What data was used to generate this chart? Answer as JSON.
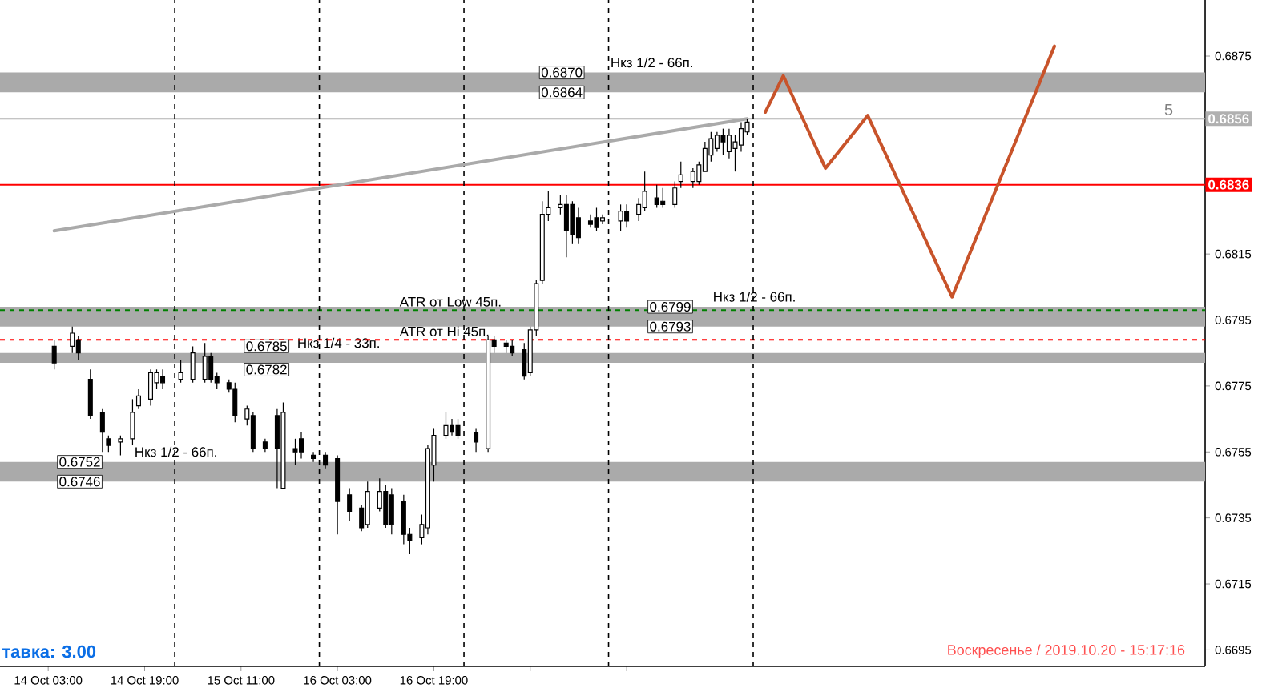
{
  "chart_data": {
    "type": "candlestick",
    "x": [
      "2019-10-14T04:00",
      "2019-10-14T07:00",
      "2019-10-14T08:00",
      "2019-10-14T10:00",
      "2019-10-14T12:00",
      "2019-10-14T13:00",
      "2019-10-14T15:00",
      "2019-10-14T17:00",
      "2019-10-14T18:00",
      "2019-10-14T20:00",
      "2019-10-14T21:00",
      "2019-10-14T22:00",
      "2019-10-15T01:00",
      "2019-10-15T03:00",
      "2019-10-15T05:00",
      "2019-10-15T06:00",
      "2019-10-15T07:00",
      "2019-10-15T09:00",
      "2019-10-15T10:00",
      "2019-10-15T12:00",
      "2019-10-15T13:00",
      "2019-10-15T15:00",
      "2019-10-15T17:00",
      "2019-10-15T18:00",
      "2019-10-15T20:00",
      "2019-10-15T21:00",
      "2019-10-15T23:00",
      "2019-10-16T01:00",
      "2019-10-16T03:00",
      "2019-10-16T05:00",
      "2019-10-16T07:00",
      "2019-10-16T08:00",
      "2019-10-16T10:00",
      "2019-10-16T11:00",
      "2019-10-16T12:00",
      "2019-10-16T14:00",
      "2019-10-16T15:00",
      "2019-10-16T17:00",
      "2019-10-16T18:00",
      "2019-10-16T19:00",
      "2019-10-16T21:00",
      "2019-10-16T22:00",
      "2019-10-16T23:00",
      "2019-10-17T02:00",
      "2019-10-17T04:00",
      "2019-10-17T05:00",
      "2019-10-17T07:00",
      "2019-10-17T08:00",
      "2019-10-17T10:00",
      "2019-10-17T11:00",
      "2019-10-17T12:00",
      "2019-10-17T13:00",
      "2019-10-17T14:00",
      "2019-10-17T16:00",
      "2019-10-17T17:00",
      "2019-10-17T18:00",
      "2019-10-17T19:00",
      "2019-10-17T21:00",
      "2019-10-17T22:00",
      "2019-10-17T23:00",
      "2019-10-18T02:00",
      "2019-10-18T03:00",
      "2019-10-18T05:00",
      "2019-10-18T06:00",
      "2019-10-18T08:00",
      "2019-10-18T09:00",
      "2019-10-18T11:00",
      "2019-10-18T12:00",
      "2019-10-18T14:00",
      "2019-10-18T15:00",
      "2019-10-18T16:00",
      "2019-10-18T17:00",
      "2019-10-18T18:00",
      "2019-10-18T19:00",
      "2019-10-18T20:00",
      "2019-10-18T21:00",
      "2019-10-18T22:00",
      "2019-10-18T23:00"
    ],
    "ohlc": [
      [
        0.6787,
        0.6789,
        0.678,
        0.6782
      ],
      [
        0.6787,
        0.6793,
        0.6785,
        0.6791
      ],
      [
        0.6789,
        0.679,
        0.6783,
        0.6785
      ],
      [
        0.6777,
        0.678,
        0.6765,
        0.6766
      ],
      [
        0.6767,
        0.6768,
        0.6755,
        0.6761
      ],
      [
        0.6759,
        0.676,
        0.6755,
        0.6757
      ],
      [
        0.6758,
        0.676,
        0.6754,
        0.6759
      ],
      [
        0.6759,
        0.6771,
        0.6757,
        0.6767
      ],
      [
        0.6769,
        0.6774,
        0.6768,
        0.6772
      ],
      [
        0.6771,
        0.678,
        0.6769,
        0.6779
      ],
      [
        0.6776,
        0.678,
        0.6774,
        0.6779
      ],
      [
        0.6778,
        0.678,
        0.6774,
        0.6776
      ],
      [
        0.6777,
        0.6783,
        0.6776,
        0.6779
      ],
      [
        0.6777,
        0.6787,
        0.6776,
        0.6785
      ],
      [
        0.6777,
        0.6788,
        0.6776,
        0.6784
      ],
      [
        0.6784,
        0.6785,
        0.6776,
        0.6777
      ],
      [
        0.6778,
        0.6779,
        0.6774,
        0.6776
      ],
      [
        0.6776,
        0.6777,
        0.6773,
        0.6774
      ],
      [
        0.6774,
        0.6776,
        0.6764,
        0.6766
      ],
      [
        0.6765,
        0.6769,
        0.6763,
        0.6768
      ],
      [
        0.6766,
        0.6767,
        0.6755,
        0.6756
      ],
      [
        0.6758,
        0.6759,
        0.6755,
        0.6756
      ],
      [
        0.6766,
        0.6768,
        0.6744,
        0.6756
      ],
      [
        0.6744,
        0.677,
        0.6744,
        0.6767
      ],
      [
        0.6756,
        0.6759,
        0.6751,
        0.6755
      ],
      [
        0.6759,
        0.6761,
        0.6753,
        0.6755
      ],
      [
        0.6754,
        0.6755,
        0.6752,
        0.6753
      ],
      [
        0.6754,
        0.6755,
        0.675,
        0.6751
      ],
      [
        0.6753,
        0.6754,
        0.673,
        0.674
      ],
      [
        0.6742,
        0.6744,
        0.6734,
        0.6737
      ],
      [
        0.6738,
        0.6739,
        0.6731,
        0.6732
      ],
      [
        0.6733,
        0.6746,
        0.6732,
        0.6743
      ],
      [
        0.6738,
        0.6747,
        0.6737,
        0.6743
      ],
      [
        0.6743,
        0.6745,
        0.6732,
        0.6733
      ],
      [
        0.6742,
        0.6744,
        0.673,
        0.6733
      ],
      [
        0.674,
        0.6742,
        0.6727,
        0.673
      ],
      [
        0.673,
        0.6732,
        0.6724,
        0.6728
      ],
      [
        0.6729,
        0.6736,
        0.6727,
        0.6733
      ],
      [
        0.6732,
        0.6757,
        0.673,
        0.6756
      ],
      [
        0.6751,
        0.6762,
        0.6746,
        0.676
      ],
      [
        0.676,
        0.6767,
        0.6759,
        0.6763
      ],
      [
        0.6763,
        0.6765,
        0.676,
        0.6761
      ],
      [
        0.6763,
        0.6765,
        0.6759,
        0.676
      ],
      [
        0.6761,
        0.6762,
        0.6755,
        0.6758
      ],
      [
        0.6756,
        0.679,
        0.6755,
        0.6789
      ],
      [
        0.6789,
        0.679,
        0.6785,
        0.6787
      ],
      [
        0.6788,
        0.6789,
        0.6785,
        0.6787
      ],
      [
        0.6787,
        0.6789,
        0.6784,
        0.6785
      ],
      [
        0.6786,
        0.6788,
        0.6777,
        0.6778
      ],
      [
        0.6779,
        0.6793,
        0.6778,
        0.6792
      ],
      [
        0.6792,
        0.6807,
        0.679,
        0.6806
      ],
      [
        0.6807,
        0.6831,
        0.6806,
        0.6827
      ],
      [
        0.6827,
        0.6834,
        0.6825,
        0.6829
      ],
      [
        0.6829,
        0.6833,
        0.6827,
        0.683
      ],
      [
        0.683,
        0.6833,
        0.6814,
        0.6822
      ],
      [
        0.683,
        0.6831,
        0.6818,
        0.6821
      ],
      [
        0.6826,
        0.6829,
        0.6818,
        0.682
      ],
      [
        0.6825,
        0.6827,
        0.6823,
        0.6824
      ],
      [
        0.6826,
        0.6829,
        0.6822,
        0.6823
      ],
      [
        0.6825,
        0.6827,
        0.6824,
        0.6826
      ],
      [
        0.6825,
        0.683,
        0.6822,
        0.6828
      ],
      [
        0.6828,
        0.683,
        0.6823,
        0.6825
      ],
      [
        0.6827,
        0.6832,
        0.6825,
        0.683
      ],
      [
        0.6829,
        0.684,
        0.6828,
        0.6834
      ],
      [
        0.6832,
        0.6836,
        0.6829,
        0.683
      ],
      [
        0.6831,
        0.6835,
        0.6829,
        0.683
      ],
      [
        0.683,
        0.6837,
        0.6829,
        0.6835
      ],
      [
        0.6837,
        0.6843,
        0.6835,
        0.6839
      ],
      [
        0.6837,
        0.6841,
        0.6835,
        0.684
      ],
      [
        0.6837,
        0.6843,
        0.6836,
        0.6842
      ],
      [
        0.684,
        0.6849,
        0.684,
        0.6847
      ],
      [
        0.6845,
        0.6852,
        0.6843,
        0.685
      ],
      [
        0.6847,
        0.6852,
        0.6846,
        0.6851
      ],
      [
        0.6851,
        0.6853,
        0.6845,
        0.6849
      ],
      [
        0.6846,
        0.6853,
        0.6844,
        0.6851
      ],
      [
        0.6847,
        0.6851,
        0.684,
        0.6849
      ],
      [
        0.6848,
        0.6855,
        0.6846,
        0.6853
      ],
      [
        0.6852,
        0.6856,
        0.6851,
        0.6855
      ]
    ],
    "series": [
      {
        "type": "line",
        "x": [
          "2019-10-14T04:00",
          "2019-10-18T23:00"
        ],
        "values": [
          0.6822,
          0.6856
        ],
        "color": "#aaaaaa"
      },
      {
        "type": "line",
        "x": [
          "2019-10-19T02:00",
          "2019-10-19T05:00",
          "2019-10-19T12:00",
          "2019-10-19T19:00",
          "2019-10-20T09:00",
          "2019-10-21T02:00"
        ],
        "values": [
          0.6858,
          0.6869,
          0.6841,
          0.6857,
          0.6802,
          0.6878
        ],
        "color": "#c8532a"
      }
    ],
    "xlim": [
      "2019-10-13T19:00",
      "2019-10-22T03:00"
    ],
    "ylim": [
      0.669,
      0.6892
    ],
    "xticks": [
      {
        "value": "2019-10-14T03:00",
        "label": "14 Oct 03:00"
      },
      {
        "value": "2019-10-14T19:00",
        "label": "14 Oct 19:00"
      },
      {
        "value": "2019-10-15T11:00",
        "label": "15 Oct 11:00"
      },
      {
        "value": "2019-10-16T03:00",
        "label": "16 Oct 03:00"
      },
      {
        "value": "2019-10-16T19:00",
        "label": "16 Oct 19:00"
      },
      {
        "value": "2019-10-17T11:00",
        "label": null
      },
      {
        "value": "2019-10-18T03:00",
        "label": null
      }
    ],
    "yticks": [
      0.6695,
      0.6715,
      0.6735,
      0.6755,
      0.6775,
      0.6795,
      0.6815,
      {
        "value": 0.6835,
        "label": null
      },
      {
        "value": 0.6855,
        "label": null
      },
      0.6875
    ],
    "ref_lines": [
      {
        "axis": "y",
        "value": 0.6856,
        "color": "#b0b0b0",
        "line_style": "solid"
      },
      {
        "axis": "y",
        "value": 0.6836,
        "color": "#ff0000",
        "line_style": "solid"
      },
      {
        "axis": "y",
        "value": 0.6798,
        "label": "ATR от Low 45п.",
        "color": "#008000",
        "line_style": "dashed"
      },
      {
        "axis": "y",
        "value": 0.6789,
        "label": "ATR от Hi 45п.",
        "color": "#ff0000",
        "line_style": "dashed"
      },
      {
        "axis": "x",
        "value": "2019-10-15T00:00",
        "color": "#000000",
        "line_style": "dashed"
      },
      {
        "axis": "x",
        "value": "2019-10-16T00:00",
        "color": "#000000",
        "line_style": "dashed"
      },
      {
        "axis": "x",
        "value": "2019-10-17T00:00",
        "color": "#000000",
        "line_style": "dashed"
      },
      {
        "axis": "x",
        "value": "2019-10-18T00:00",
        "color": "#000000",
        "line_style": "dashed"
      },
      {
        "axis": "x",
        "value": "2019-10-19T00:00",
        "color": "#000000",
        "line_style": "dashed"
      }
    ],
    "bands": [
      {
        "axis": "y",
        "from": 0.6864,
        "to": 0.687,
        "label": "Нкз 1/2 - 66п.",
        "color": "#aaaaaa"
      },
      {
        "axis": "y",
        "from": 0.6793,
        "to": 0.6799,
        "label": "Нкз 1/2 - 66п.",
        "color": "#aaaaaa"
      },
      {
        "axis": "y",
        "from": 0.6746,
        "to": 0.6752,
        "label": "Нкз 1/2 - 66п.",
        "color": "#aaaaaa"
      },
      {
        "axis": "y",
        "from": 0.6782,
        "to": 0.6785,
        "label": "Нкз 1/4 - 33п.",
        "color": "#aaaaaa"
      }
    ],
    "annotations": [
      "тавка: 3.00",
      "Воскресенье / 2019.10.20 - 15:17:16",
      {
        "text": "5",
        "x": "2019-10-21T22:00",
        "y": 0.6856
      },
      {
        "text": "0.6856",
        "x": "2019-10-22T03:00",
        "y": 0.6856
      },
      {
        "text": "0.6836",
        "x": "2019-10-22T03:00",
        "y": 0.6836
      },
      {
        "text": "0.6870",
        "x": "2019-10-17T20:00",
        "y": 0.687
      },
      {
        "text": "0.6864",
        "x": "2019-10-17T20:00",
        "y": 0.6864
      },
      {
        "text": "0.6799",
        "x": "2019-10-18T14:00",
        "y": 0.6799
      },
      {
        "text": "0.6793",
        "x": "2019-10-18T14:00",
        "y": 0.6793
      },
      {
        "text": "0.6752",
        "x": "2019-10-14T12:00",
        "y": 0.6752
      },
      {
        "text": "0.6746",
        "x": "2019-10-14T12:00",
        "y": 0.6746
      },
      {
        "text": "0.6785",
        "x": "2019-10-15T19:00",
        "y": 0.6785
      },
      {
        "text": "0.6782",
        "x": "2019-10-15T19:00",
        "y": 0.6782
      }
    ]
  }
}
